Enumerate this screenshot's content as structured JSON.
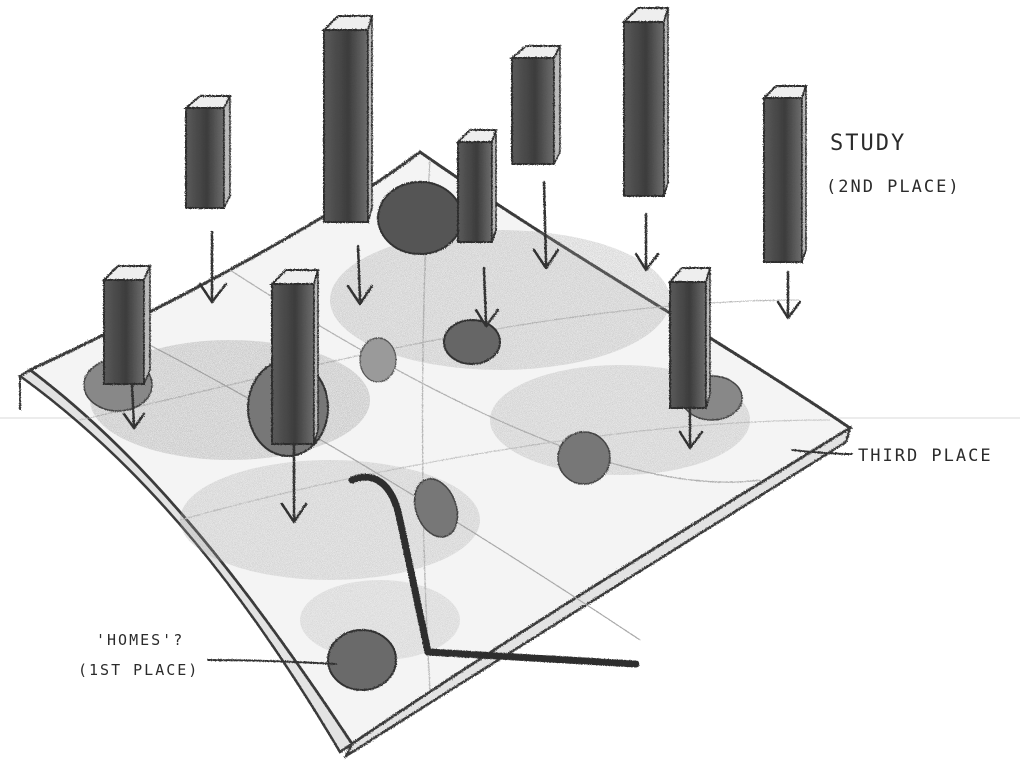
{
  "labels": {
    "study_title": "STUDY",
    "study_sub": "(2ND PLACE)",
    "third_place": "THIRD PLACE",
    "homes_title": "'HOMES'?",
    "homes_sub": "(1ST PLACE)"
  },
  "colors": {
    "paper": "#ffffff",
    "pencil": "#3a3a3a",
    "pencil_light": "#9a9a9a",
    "shade_dark": "#4a4a4a",
    "shade_mid": "#7a7a7a",
    "shade_light": "#bdbdbd"
  },
  "icons": {
    "tower": "rectangular-prism-sketch",
    "arrow": "down-arrow-sketch",
    "blob": "shaded-blob-sketch"
  }
}
